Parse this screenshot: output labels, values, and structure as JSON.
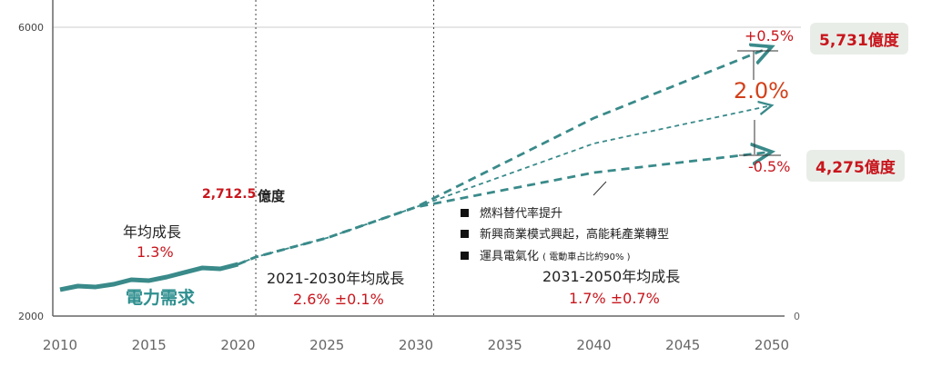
{
  "chart_data": {
    "type": "line",
    "xlim": [
      2010,
      2050
    ],
    "ylim": [
      2000,
      6000
    ],
    "x_ticks": [
      "2010",
      "2015",
      "2020",
      "2025",
      "2030",
      "2035",
      "2040",
      "2045",
      "2050"
    ],
    "y_ticks": [
      "2000",
      "6000"
    ],
    "right_axis_tick": "0",
    "grid": false,
    "series": [
      {
        "name": "電力需求",
        "style": "solid",
        "x": [
          2010,
          2011,
          2012,
          2013,
          2014,
          2015,
          2016,
          2017,
          2018,
          2019,
          2020
        ],
        "y": [
          2365,
          2415,
          2403,
          2440,
          2503,
          2491,
          2541,
          2604,
          2667,
          2654,
          2717
        ]
      },
      {
        "style": "dashed-high",
        "x": [
          2020,
          2021,
          2025,
          2030,
          2040,
          2050
        ],
        "y": [
          2717,
          2818,
          3082,
          3509,
          4742,
          5731
        ]
      },
      {
        "style": "dotted-mid",
        "x": [
          2020,
          2021,
          2025,
          2030,
          2040,
          2050
        ],
        "y": [
          2717,
          2818,
          3082,
          3509,
          4390,
          4918
        ]
      },
      {
        "style": "dashed-low",
        "x": [
          2020,
          2021,
          2025,
          2030,
          2040,
          2050
        ],
        "y": [
          2717,
          2818,
          3082,
          3509,
          3987,
          4275
        ]
      }
    ],
    "divider_years": [
      2021,
      2031
    ],
    "colors": {
      "line": "#3a8a8a",
      "red": "#c8161d",
      "orange": "#d2401a"
    }
  },
  "annotations": {
    "base_value": "2,712.5",
    "base_unit": "億度",
    "hist_growth_label": "年均成長",
    "hist_growth_value": "1.3%",
    "series_label": "電力需求",
    "p1_label": "2021-2030年均成長",
    "p1_value": "2.6% ±0.1%",
    "p2_label": "2031-2050年均成長",
    "p2_value": "1.7% ±0.7%",
    "high_delta": "+0.5%",
    "high_value": "5,731億度",
    "low_delta": "-0.5%",
    "low_value": "4,275億度",
    "mid_growth": "2.0%",
    "bullets": [
      "燃料替代率提升",
      "新興商業模式興起，高能耗產業轉型",
      "運具電氣化"
    ],
    "bullet3_note": "( 電動車占比約90% )"
  }
}
